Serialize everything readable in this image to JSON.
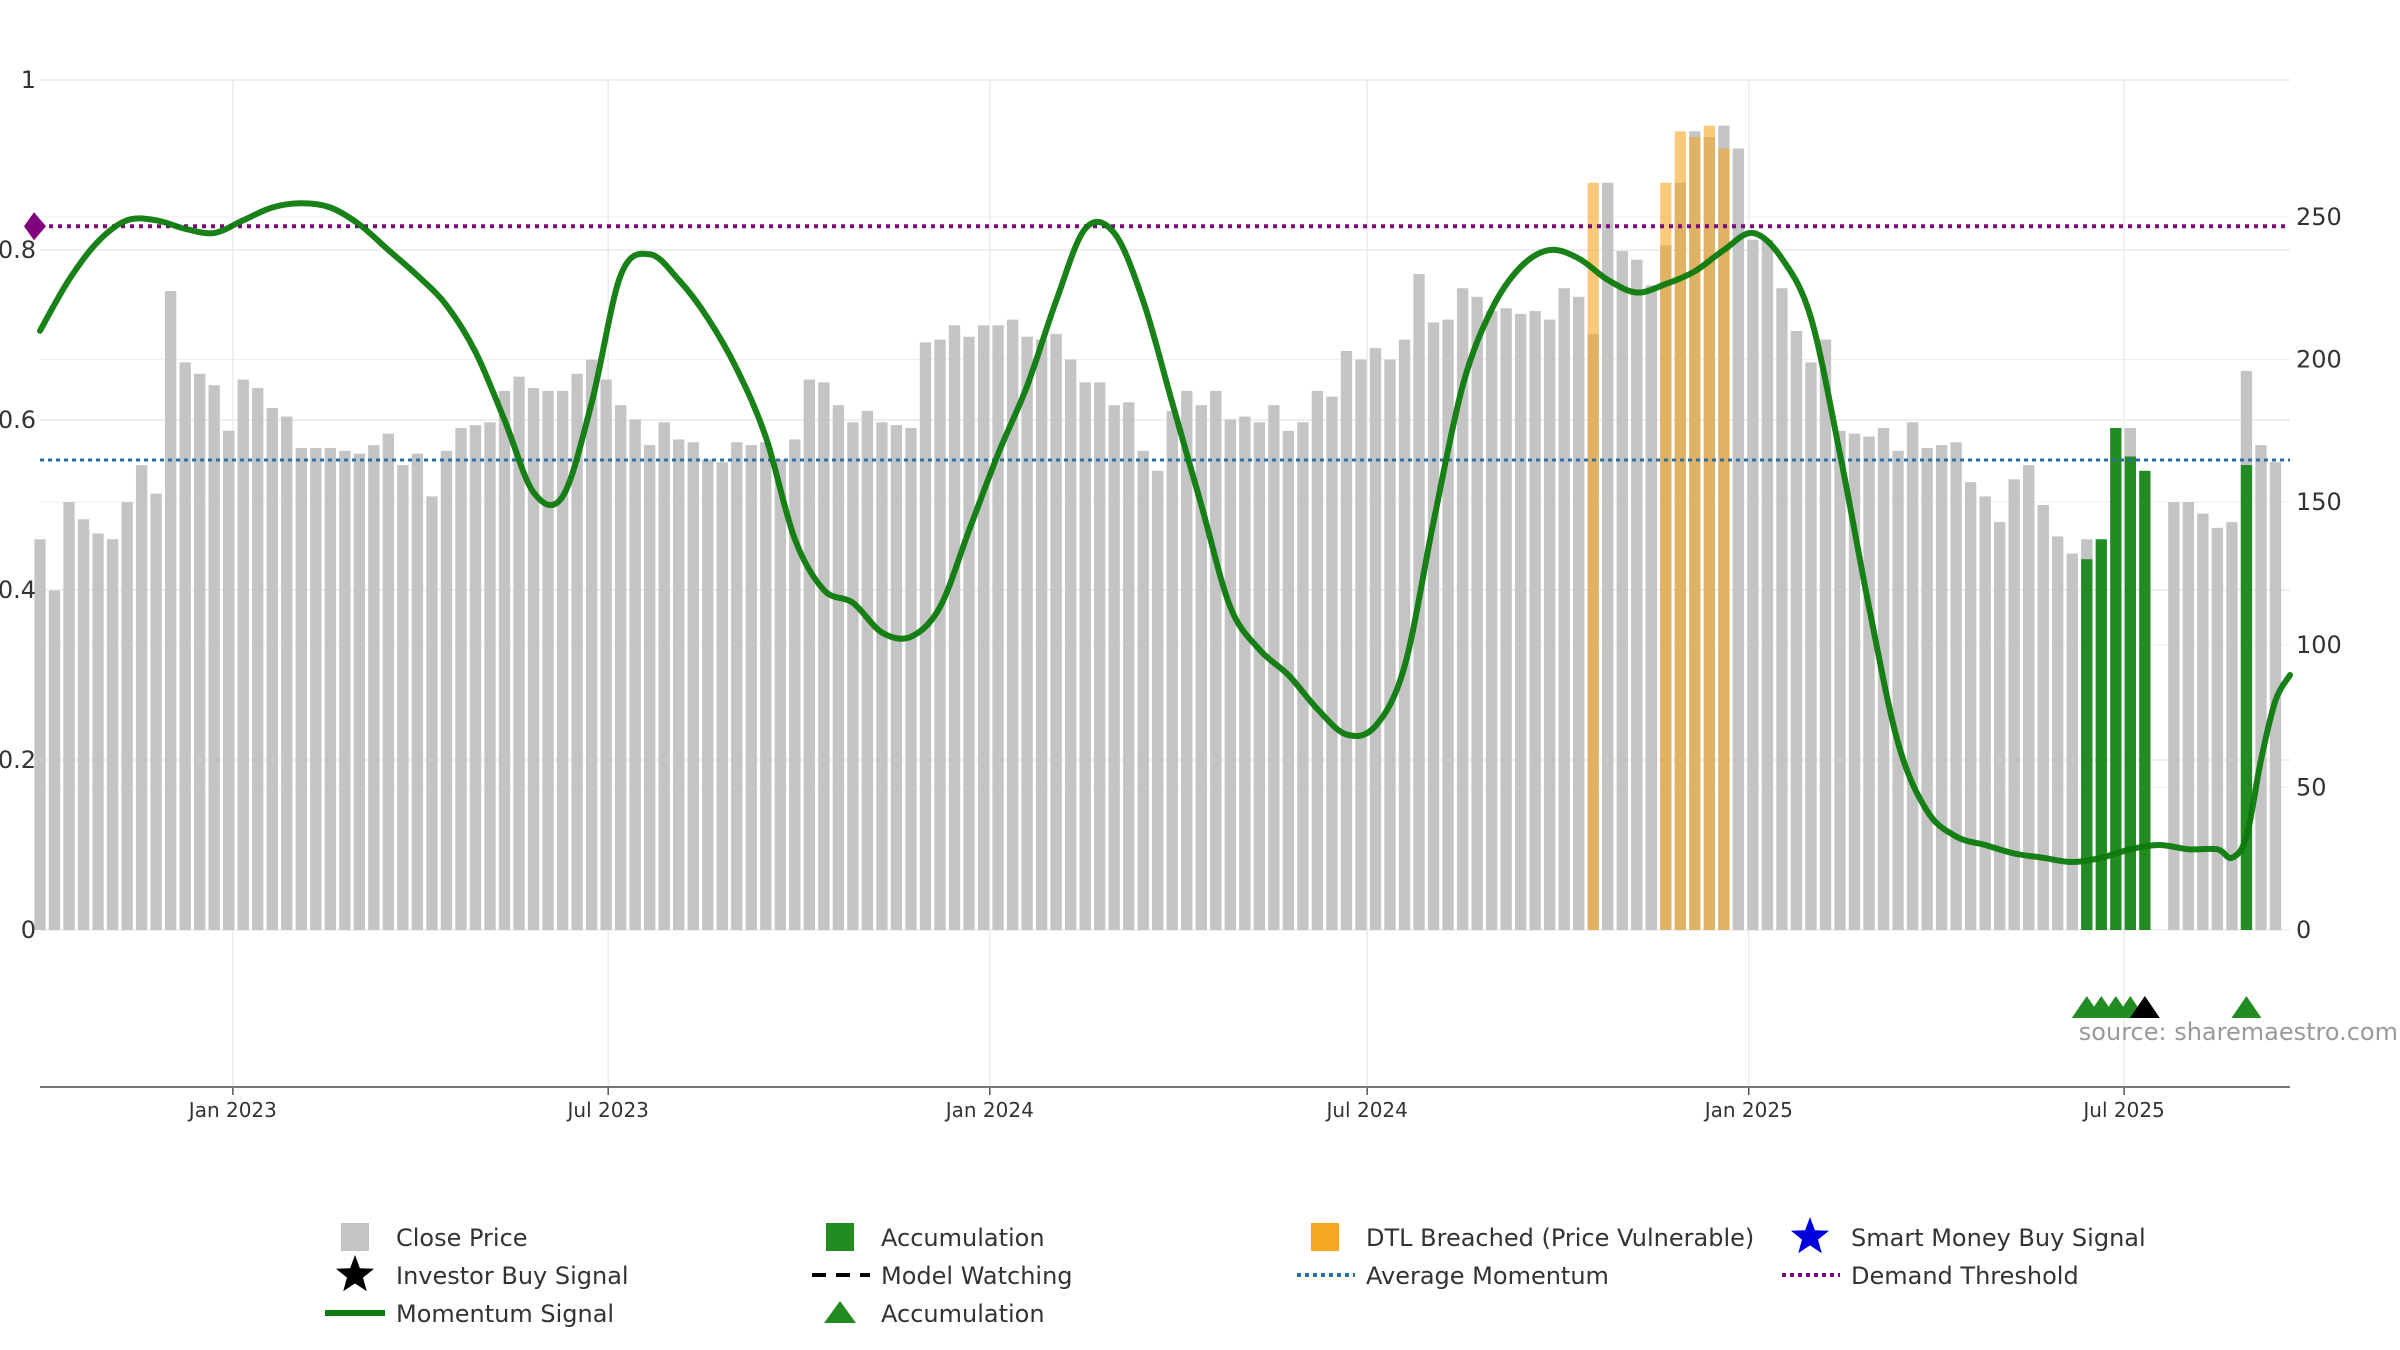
{
  "chart_data": {
    "type": "bar",
    "source_text": "source: sharemaestro.com",
    "left_axis": {
      "range": [
        0,
        1
      ],
      "ticks": [
        "0",
        "0.2",
        "0.4",
        "0.6",
        "0.8",
        "1"
      ]
    },
    "right_axis": {
      "range": [
        0,
        298
      ],
      "ticks": [
        "0",
        "50",
        "100",
        "150",
        "200",
        "250"
      ]
    },
    "x_axis": {
      "start": "2022-09-30",
      "end": "2025-09-19",
      "ticks": [
        {
          "date": "2023-01-01",
          "label": "Jan 2023"
        },
        {
          "date": "2023-07-01",
          "label": "Jul 2023"
        },
        {
          "date": "2024-01-01",
          "label": "Jan 2024"
        },
        {
          "date": "2024-07-01",
          "label": "Jul 2024"
        },
        {
          "date": "2025-01-01",
          "label": "Jan 2025"
        },
        {
          "date": "2025-07-01",
          "label": "Jul 2025"
        }
      ]
    },
    "close_price_start": "2022-09-30",
    "close_price_interval_days": 7,
    "close_price": [
      137,
      119,
      150,
      144,
      139,
      137,
      150,
      163,
      153,
      224,
      199,
      195,
      191,
      175,
      193,
      190,
      183,
      180,
      169,
      169,
      169,
      168,
      167,
      170,
      174,
      163,
      167,
      152,
      168,
      176,
      177,
      178,
      189,
      194,
      190,
      189,
      189,
      195,
      200,
      193,
      184,
      179,
      170,
      178,
      172,
      171,
      165,
      164,
      171,
      170,
      171,
      165,
      172,
      193,
      192,
      184,
      178,
      182,
      178,
      177,
      176,
      206,
      207,
      212,
      208,
      212,
      212,
      214,
      208,
      207,
      209,
      200,
      192,
      192,
      184,
      185,
      168,
      161,
      182,
      189,
      184,
      189,
      179,
      180,
      178,
      184,
      175,
      178,
      189,
      187,
      203,
      200,
      204,
      200,
      207,
      230,
      213,
      214,
      225,
      222,
      217,
      218,
      216,
      217,
      214,
      225,
      222,
      209,
      262,
      238,
      235,
      226,
      240,
      262,
      280,
      278,
      282,
      274,
      242,
      242,
      225,
      210,
      199,
      207,
      175,
      174,
      173,
      176,
      168,
      178,
      169,
      170,
      171,
      157,
      152,
      143,
      158,
      163,
      149,
      138,
      132,
      137,
      0,
      0,
      176,
      0,
      0,
      150,
      150,
      146,
      141,
      143,
      196,
      170,
      164
    ],
    "accumulation_bars": [
      {
        "date": "2025-06-13",
        "value": 130
      },
      {
        "date": "2025-06-20",
        "value": 137
      },
      {
        "date": "2025-06-27",
        "value": 176
      },
      {
        "date": "2025-07-04",
        "value": 166
      },
      {
        "date": "2025-07-11",
        "value": 161
      },
      {
        "date": "2025-08-29",
        "value": 163
      }
    ],
    "dtl_breached_bars": [
      {
        "date": "2024-10-18",
        "value": 262
      },
      {
        "date": "2024-11-22",
        "value": 262
      },
      {
        "date": "2024-11-29",
        "value": 280
      },
      {
        "date": "2024-12-06",
        "value": 278
      },
      {
        "date": "2024-12-13",
        "value": 282
      },
      {
        "date": "2024-12-20",
        "value": 274
      }
    ],
    "momentum_signal": [
      [
        "2022-09-30",
        0.705
      ],
      [
        "2022-10-14",
        0.765
      ],
      [
        "2022-10-28",
        0.81
      ],
      [
        "2022-11-11",
        0.835
      ],
      [
        "2022-11-25",
        0.835
      ],
      [
        "2022-12-09",
        0.825
      ],
      [
        "2022-12-23",
        0.82
      ],
      [
        "2023-01-06",
        0.835
      ],
      [
        "2023-01-20",
        0.85
      ],
      [
        "2023-02-03",
        0.855
      ],
      [
        "2023-02-17",
        0.85
      ],
      [
        "2023-03-03",
        0.83
      ],
      [
        "2023-03-17",
        0.8
      ],
      [
        "2023-03-31",
        0.77
      ],
      [
        "2023-04-14",
        0.735
      ],
      [
        "2023-04-28",
        0.68
      ],
      [
        "2023-05-12",
        0.6
      ],
      [
        "2023-05-26",
        0.515
      ],
      [
        "2023-06-09",
        0.51
      ],
      [
        "2023-06-23",
        0.62
      ],
      [
        "2023-07-07",
        0.77
      ],
      [
        "2023-07-21",
        0.795
      ],
      [
        "2023-08-04",
        0.765
      ],
      [
        "2023-08-18",
        0.72
      ],
      [
        "2023-09-01",
        0.66
      ],
      [
        "2023-09-15",
        0.58
      ],
      [
        "2023-09-29",
        0.46
      ],
      [
        "2023-10-13",
        0.4
      ],
      [
        "2023-10-27",
        0.385
      ],
      [
        "2023-11-10",
        0.35
      ],
      [
        "2023-11-24",
        0.345
      ],
      [
        "2023-12-08",
        0.38
      ],
      [
        "2023-12-22",
        0.47
      ],
      [
        "2024-01-05",
        0.56
      ],
      [
        "2024-01-19",
        0.64
      ],
      [
        "2024-02-02",
        0.74
      ],
      [
        "2024-02-16",
        0.825
      ],
      [
        "2024-03-01",
        0.82
      ],
      [
        "2024-03-15",
        0.74
      ],
      [
        "2024-03-29",
        0.62
      ],
      [
        "2024-04-12",
        0.5
      ],
      [
        "2024-04-26",
        0.38
      ],
      [
        "2024-05-10",
        0.33
      ],
      [
        "2024-05-24",
        0.3
      ],
      [
        "2024-06-07",
        0.26
      ],
      [
        "2024-06-21",
        0.23
      ],
      [
        "2024-07-05",
        0.24
      ],
      [
        "2024-07-19",
        0.31
      ],
      [
        "2024-08-02",
        0.48
      ],
      [
        "2024-08-16",
        0.64
      ],
      [
        "2024-08-30",
        0.73
      ],
      [
        "2024-09-13",
        0.78
      ],
      [
        "2024-09-27",
        0.8
      ],
      [
        "2024-10-11",
        0.79
      ],
      [
        "2024-10-25",
        0.765
      ],
      [
        "2024-11-08",
        0.75
      ],
      [
        "2024-11-22",
        0.76
      ],
      [
        "2024-12-06",
        0.775
      ],
      [
        "2024-12-20",
        0.8
      ],
      [
        "2025-01-03",
        0.82
      ],
      [
        "2025-01-17",
        0.79
      ],
      [
        "2025-01-31",
        0.72
      ],
      [
        "2025-02-14",
        0.56
      ],
      [
        "2025-02-28",
        0.38
      ],
      [
        "2025-03-14",
        0.22
      ],
      [
        "2025-03-28",
        0.14
      ],
      [
        "2025-04-11",
        0.11
      ],
      [
        "2025-04-25",
        0.1
      ],
      [
        "2025-05-09",
        0.09
      ],
      [
        "2025-05-23",
        0.085
      ],
      [
        "2025-06-06",
        0.08
      ],
      [
        "2025-06-20",
        0.085
      ],
      [
        "2025-07-04",
        0.095
      ],
      [
        "2025-07-18",
        0.1
      ],
      [
        "2025-08-01",
        0.095
      ],
      [
        "2025-08-15",
        0.095
      ],
      [
        "2025-08-22",
        0.085
      ],
      [
        "2025-08-29",
        0.11
      ],
      [
        "2025-09-05",
        0.2
      ],
      [
        "2025-09-12",
        0.27
      ],
      [
        "2025-09-19",
        0.3
      ]
    ],
    "average_momentum": 0.553,
    "demand_threshold": 0.828,
    "accumulation_markers": [
      "2025-06-13",
      "2025-06-20",
      "2025-06-27",
      "2025-07-04",
      "2025-08-29"
    ],
    "investor_buy_signal_markers": [
      "2025-07-11"
    ],
    "current_marker": 0.828,
    "colors": {
      "close_price": "#c4c4c4",
      "accumulation": "#228B22",
      "dtl_breached": "#F5A623",
      "smart_money": "#0000DD",
      "investor": "#000000",
      "momentum": "#0c7a0c",
      "average_momentum": "#2f6f9e",
      "demand_threshold": "#7a0a7a",
      "marker": "#800080"
    },
    "legend": [
      {
        "label": "Close Price",
        "icon": "grey-square"
      },
      {
        "label": "Accumulation",
        "icon": "green-square"
      },
      {
        "label": "DTL Breached (Price Vulnerable)",
        "icon": "orange-square"
      },
      {
        "label": "Smart Money Buy Signal",
        "icon": "blue-star"
      },
      {
        "label": "Investor Buy Signal",
        "icon": "black-star"
      },
      {
        "label": "Model Watching",
        "icon": "dashed-black-line"
      },
      {
        "label": "Average Momentum",
        "icon": "dotted-blue-line"
      },
      {
        "label": "Demand Threshold",
        "icon": "dotted-purple-line"
      },
      {
        "label": "Momentum Signal",
        "icon": "green-line"
      },
      {
        "label": "Accumulation",
        "icon": "green-triangle"
      }
    ]
  }
}
